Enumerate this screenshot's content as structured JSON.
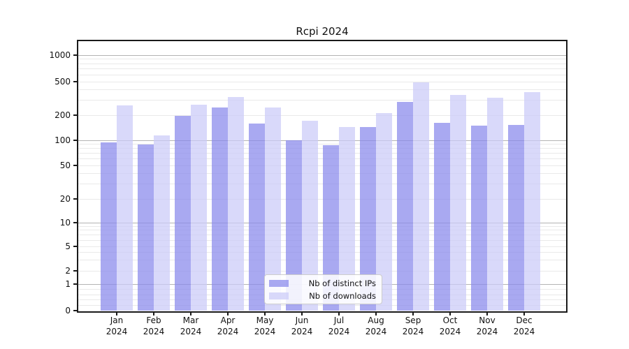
{
  "chart_data": {
    "type": "bar",
    "title": "Rcpi 2024",
    "categories": [
      "Jan",
      "Feb",
      "Mar",
      "Apr",
      "May",
      "Jun",
      "Jul",
      "Aug",
      "Sep",
      "Oct",
      "Nov",
      "Dec"
    ],
    "year_label": "2024",
    "series": [
      {
        "name": "Nb of distinct IPs",
        "color": "rgba(136,136,236,0.72)",
        "color_on_white_hex": "#a9a9f1",
        "values": [
          95,
          89,
          195,
          245,
          160,
          100,
          88,
          143,
          290,
          163,
          150,
          152
        ]
      },
      {
        "name": "Nb of downloads",
        "color": "rgba(202,202,248,0.72)",
        "color_on_white_hex": "#d9d9fa",
        "values": [
          260,
          115,
          265,
          330,
          245,
          170,
          145,
          210,
          495,
          350,
          320,
          375
        ]
      }
    ],
    "xlabel": "",
    "ylabel": "",
    "yscale": "symlog",
    "ytick_labels": [
      "1000",
      "500",
      "200",
      "100",
      "50",
      "20",
      "10",
      "5",
      "2",
      "1",
      "0"
    ],
    "ytick_values": [
      1000,
      500,
      200,
      100,
      50,
      20,
      10,
      5,
      2,
      1,
      0
    ],
    "ylim": [
      0,
      1450
    ],
    "grid": true,
    "legend_position": "lower center",
    "colors": {
      "major_grid": "#b3b3b3",
      "minor_grid": "#e9e9e9",
      "spine": "#1a1a1a",
      "text": "#111111"
    }
  }
}
